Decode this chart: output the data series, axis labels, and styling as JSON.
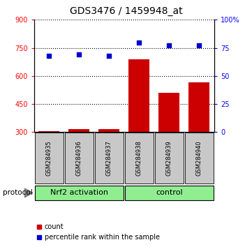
{
  "title": "GDS3476 / 1459948_at",
  "samples": [
    "GSM284935",
    "GSM284936",
    "GSM284937",
    "GSM284938",
    "GSM284939",
    "GSM284940"
  ],
  "counts": [
    305,
    318,
    318,
    690,
    510,
    565
  ],
  "percentile_ranks": [
    68,
    69,
    68,
    80,
    77,
    77
  ],
  "ylim_left": [
    300,
    900
  ],
  "ylim_right": [
    0,
    100
  ],
  "yticks_left": [
    300,
    450,
    600,
    750,
    900
  ],
  "yticks_right": [
    0,
    25,
    50,
    75,
    100
  ],
  "ytick_labels_left": [
    "300",
    "450",
    "600",
    "750",
    "900"
  ],
  "ytick_labels_right": [
    "0",
    "25",
    "50",
    "75",
    "100%"
  ],
  "bar_color": "#CC0000",
  "dot_color": "#0000CC",
  "sample_box_color": "#C8C8C8",
  "group_color": "#90EE90",
  "group_ranges": [
    [
      0,
      2
    ],
    [
      3,
      5
    ]
  ],
  "group_labels": [
    "Nrf2 activation",
    "control"
  ],
  "bar_width": 0.7,
  "title_fontsize": 10,
  "tick_fontsize": 7,
  "legend_fontsize": 7,
  "sample_fontsize": 6,
  "group_fontsize": 8
}
